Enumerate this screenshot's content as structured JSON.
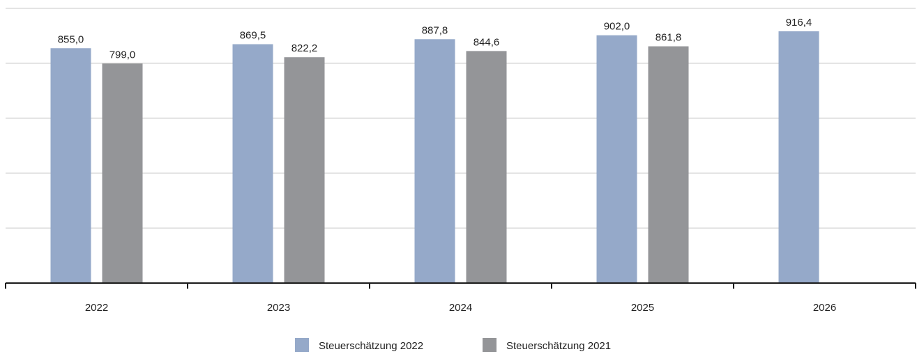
{
  "chart_data": {
    "type": "bar",
    "categories": [
      "2022",
      "2023",
      "2024",
      "2025",
      "2026"
    ],
    "series": [
      {
        "name": "Steuerschätzung 2022",
        "values": [
          855.0,
          869.5,
          887.8,
          902.0,
          916.4
        ],
        "labels": [
          "855,0",
          "869,5",
          "887,8",
          "902,0",
          "916,4"
        ],
        "color": "#95a9c9"
      },
      {
        "name": "Steuerschätzung 2021",
        "values": [
          799.0,
          822.2,
          844.6,
          861.8,
          null
        ],
        "labels": [
          "799,0",
          "822,2",
          "844,6",
          "861,8",
          null
        ],
        "color": "#949598"
      }
    ],
    "ylim": [
      0,
      1000
    ],
    "grid": true,
    "legend_position": "bottom-center",
    "title": "",
    "xlabel": "",
    "ylabel": ""
  }
}
